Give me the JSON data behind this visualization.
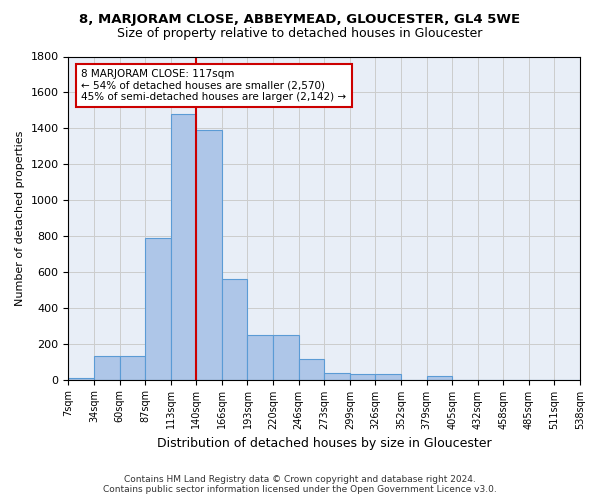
{
  "title": "8, MARJORAM CLOSE, ABBEYMEAD, GLOUCESTER, GL4 5WE",
  "subtitle": "Size of property relative to detached houses in Gloucester",
  "xlabel": "Distribution of detached houses by size in Gloucester",
  "ylabel": "Number of detached properties",
  "bar_values": [
    10,
    130,
    130,
    790,
    1480,
    1390,
    560,
    250,
    250,
    115,
    35,
    30,
    30,
    0,
    20,
    0,
    0,
    0,
    0,
    0
  ],
  "bin_labels": [
    "7sqm",
    "34sqm",
    "60sqm",
    "87sqm",
    "113sqm",
    "140sqm",
    "166sqm",
    "193sqm",
    "220sqm",
    "246sqm",
    "273sqm",
    "299sqm",
    "326sqm",
    "352sqm",
    "379sqm",
    "405sqm",
    "432sqm",
    "458sqm",
    "485sqm",
    "511sqm",
    "538sqm"
  ],
  "bar_color": "#aec6e8",
  "bar_edge_color": "#5b9bd5",
  "grid_color": "#cccccc",
  "bg_color": "#e8eef7",
  "vline_x": 4.5,
  "annotation_text": "8 MARJORAM CLOSE: 117sqm\n← 54% of detached houses are smaller (2,570)\n45% of semi-detached houses are larger (2,142) →",
  "annotation_box_color": "#cc0000",
  "footer1": "Contains HM Land Registry data © Crown copyright and database right 2024.",
  "footer2": "Contains public sector information licensed under the Open Government Licence v3.0.",
  "ylim": [
    0,
    1800
  ],
  "yticks": [
    0,
    200,
    400,
    600,
    800,
    1000,
    1200,
    1400,
    1600,
    1800
  ]
}
